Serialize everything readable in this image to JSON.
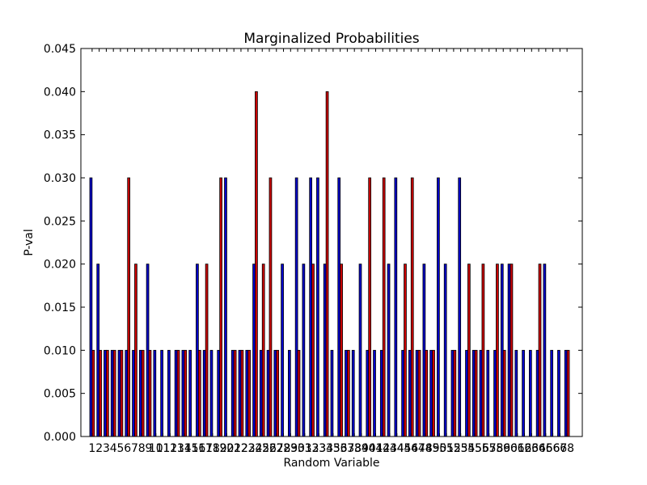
{
  "chart_data": {
    "type": "bar",
    "title": "Marginalized Probabilities",
    "xlabel": "Random Variable",
    "ylabel": "P-val",
    "ylim": [
      0,
      0.045
    ],
    "yticks": [
      "0.000",
      "0.005",
      "0.010",
      "0.015",
      "0.020",
      "0.025",
      "0.030",
      "0.035",
      "0.040",
      "0.045"
    ],
    "grid": false,
    "legend": "none",
    "categories": [
      "1",
      "2",
      "3",
      "4",
      "5",
      "6",
      "7",
      "8",
      "9",
      "10",
      "11",
      "12",
      "13",
      "14",
      "15",
      "16",
      "17",
      "18",
      "19",
      "20",
      "21",
      "22",
      "23",
      "24",
      "25",
      "26",
      "27",
      "28",
      "29",
      "30",
      "31",
      "32",
      "33",
      "34",
      "35",
      "36",
      "37",
      "38",
      "39",
      "40",
      "41",
      "42",
      "43",
      "44",
      "45",
      "46",
      "47",
      "48",
      "49",
      "50",
      "51",
      "52",
      "53",
      "54",
      "55",
      "56",
      "57",
      "58",
      "59",
      "60",
      "61",
      "62",
      "63",
      "64",
      "65",
      "66",
      "67",
      "68"
    ],
    "series": [
      {
        "color": "#0000cc",
        "values": [
          0.03,
          0.02,
          0.01,
          0.01,
          0.01,
          0.01,
          0.01,
          0.01,
          0.02,
          0.01,
          0.01,
          0.01,
          0.01,
          0.01,
          0.01,
          0.02,
          0.01,
          0.01,
          0.01,
          0.03,
          0.01,
          0.01,
          0.01,
          0.02,
          0.01,
          0.01,
          0.01,
          0.02,
          0.01,
          0.03,
          0.02,
          0.03,
          0.03,
          0.02,
          0.01,
          0.03,
          0.01,
          0.01,
          0.02,
          0.01,
          0.01,
          0.01,
          0.02,
          0.03,
          0.01,
          0.01,
          0.01,
          0.02,
          0.01,
          0.03,
          0.02,
          0.01,
          0.03,
          0.01,
          0.01,
          0.01,
          0.01,
          0.01,
          0.02,
          0.02,
          0.01,
          0.01,
          0.01,
          0.01,
          0.02,
          0.01,
          0.01,
          0.01
        ]
      },
      {
        "color": "#cc0000",
        "values": [
          0.01,
          0.01,
          0.01,
          0.01,
          0.01,
          0.03,
          0.02,
          0.01,
          0.01,
          0,
          0,
          0,
          0.01,
          0.01,
          0,
          0.01,
          0.02,
          0,
          0.03,
          0,
          0.01,
          0.01,
          0.01,
          0.04,
          0.02,
          0.03,
          0.01,
          0,
          0,
          0.01,
          0,
          0.02,
          0,
          0.04,
          0,
          0.02,
          0.01,
          0,
          0,
          0.03,
          0,
          0.03,
          0,
          0,
          0.02,
          0.03,
          0.01,
          0.01,
          0.01,
          0,
          0,
          0.01,
          0,
          0.02,
          0.01,
          0.02,
          0,
          0.02,
          0.01,
          0.02,
          0,
          0,
          0,
          0.02,
          0,
          0,
          0,
          0.01
        ]
      }
    ]
  }
}
